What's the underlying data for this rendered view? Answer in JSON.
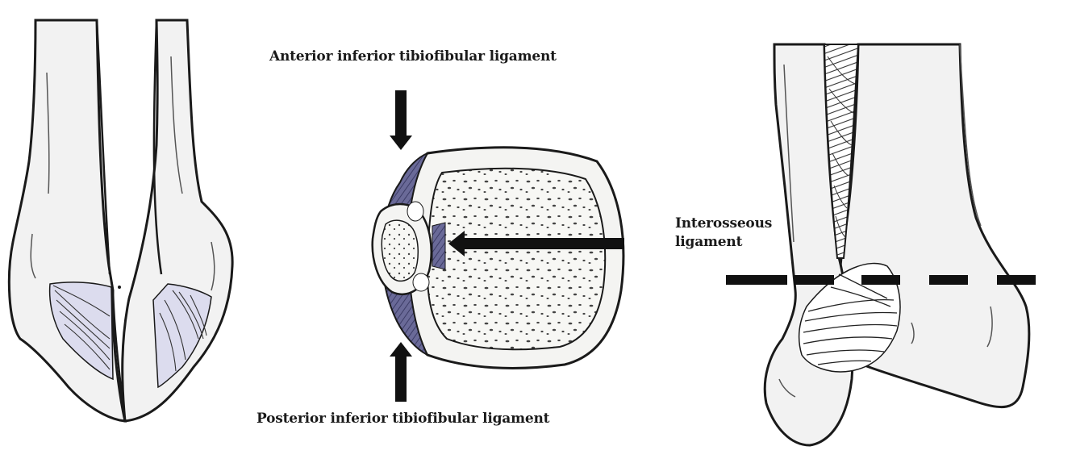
{
  "labels": {
    "anterior": "Anterior inferior tibiofibular ligament",
    "posterior": "Posterior inferior tibiofibular ligament",
    "interosseous_line1": "Interosseous",
    "interosseous_line2": "ligament"
  },
  "colors": {
    "bone_fill": "#f4f4f4",
    "outline": "#1a1a1a",
    "ligament_shade": "#d9d9ea",
    "ligament_dark": "#4a4a78",
    "arrow": "#111111"
  }
}
